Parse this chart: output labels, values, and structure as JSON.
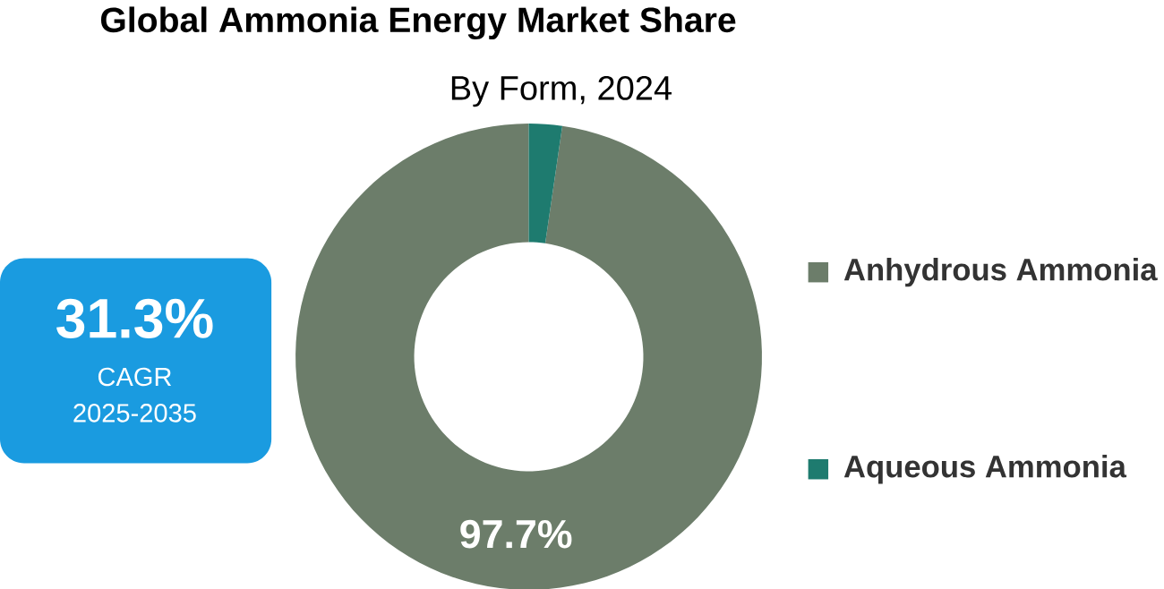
{
  "chart_data": {
    "type": "donut",
    "title": "Global Ammonia Energy Market Share",
    "subtitle": "By Form, 2024",
    "categories": [
      "Anhydrous Ammonia",
      "Aqueous Ammonia"
    ],
    "values": [
      97.7,
      2.3
    ],
    "colors": [
      "#6c7d6a",
      "#1e7b6f"
    ],
    "value_labels": [
      "97.7%",
      null
    ],
    "legend": "right",
    "annotations": [
      "31.3%",
      "CAGR",
      "2025-2035"
    ]
  }
}
